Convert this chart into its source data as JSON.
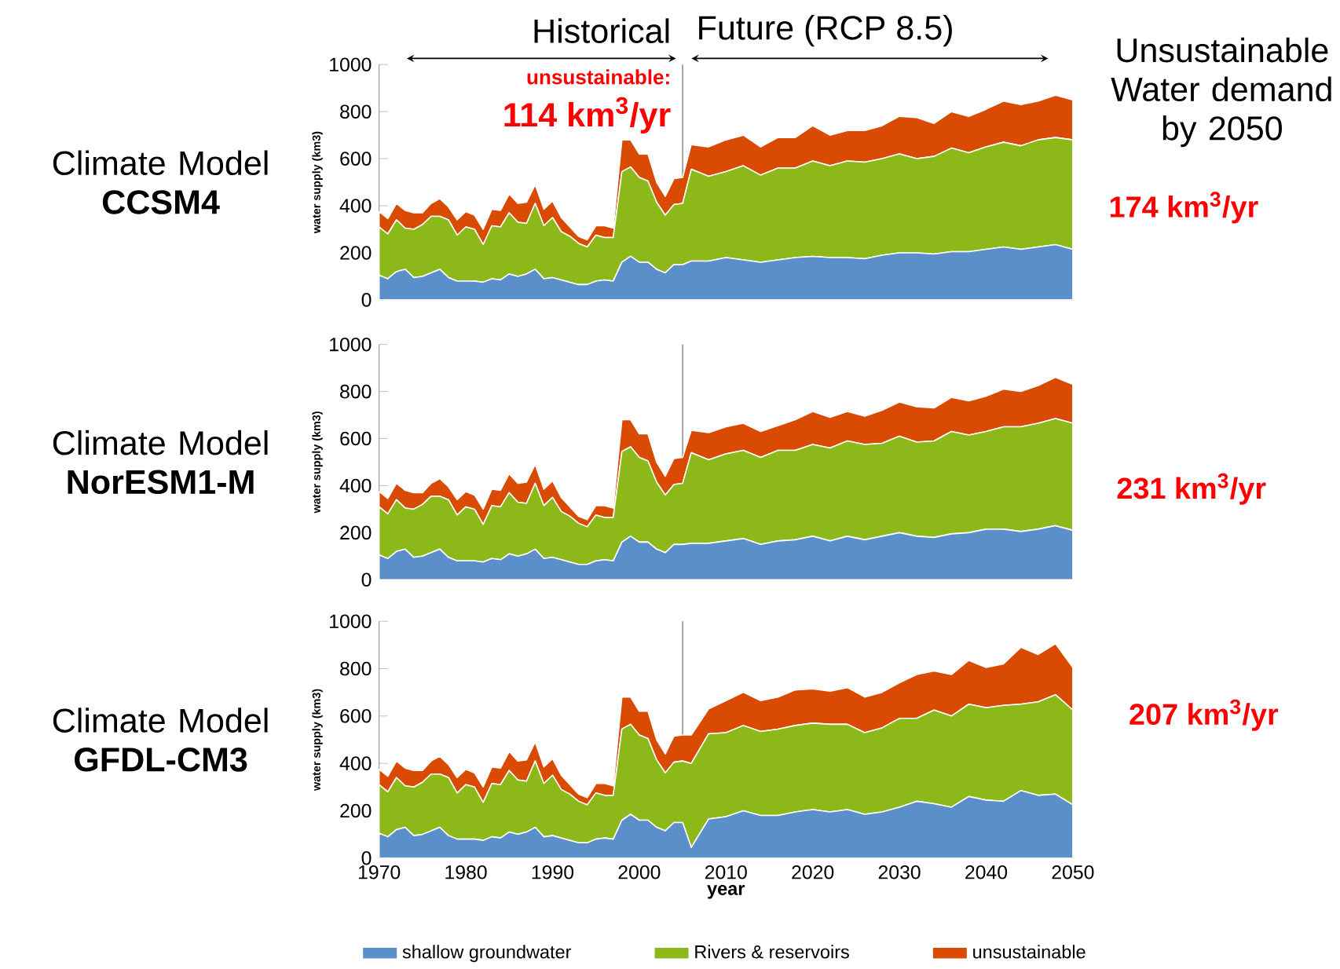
{
  "chart_data": [
    {
      "type": "area",
      "stacked": true,
      "title": "Climate Model **CCSM4**",
      "ylabel": "water supply (km3)",
      "annotations": [
        "Historical",
        "Future (RCP 8.5)",
        "unsustainable:",
        "114 km$^{3}$/yr",
        "Unsustainable Water demand by 2050",
        "174  km$^{3}$/yr"
      ],
      "x": [
        1970,
        1971,
        1972,
        1973,
        1974,
        1975,
        1976,
        1977,
        1978,
        1979,
        1980,
        1981,
        1982,
        1983,
        1984,
        1985,
        1986,
        1987,
        1988,
        1989,
        1990,
        1991,
        1992,
        1993,
        1994,
        1995,
        1996,
        1997,
        1998,
        1999,
        2000,
        2001,
        2002,
        2003,
        2004,
        2005,
        2006,
        2008,
        2010,
        2012,
        2014,
        2016,
        2018,
        2020,
        2022,
        2024,
        2026,
        2028,
        2030,
        2032,
        2034,
        2036,
        2038,
        2040,
        2042,
        2044,
        2046,
        2048,
        2050
      ],
      "series": [
        {
          "color": "#5b8fc9",
          "values": [
            105,
            90,
            120,
            130,
            95,
            100,
            115,
            130,
            95,
            80,
            80,
            80,
            75,
            90,
            85,
            110,
            100,
            110,
            130,
            90,
            95,
            85,
            75,
            65,
            65,
            80,
            85,
            80,
            160,
            185,
            160,
            160,
            130,
            115,
            150,
            150,
            165,
            165,
            180,
            170,
            160,
            170,
            180,
            185,
            180,
            180,
            175,
            190,
            200,
            200,
            195,
            205,
            205,
            215,
            225,
            215,
            225,
            235,
            215
          ]
        },
        {
          "color": "#8db819",
          "values": [
            205,
            190,
            220,
            175,
            205,
            220,
            240,
            225,
            245,
            195,
            230,
            220,
            160,
            225,
            225,
            260,
            230,
            215,
            280,
            225,
            255,
            205,
            195,
            175,
            160,
            195,
            180,
            185,
            385,
            380,
            360,
            345,
            285,
            245,
            255,
            260,
            390,
            360,
            365,
            400,
            370,
            390,
            380,
            405,
            390,
            410,
            410,
            410,
            420,
            400,
            415,
            440,
            420,
            435,
            445,
            440,
            455,
            455,
            465
          ]
        },
        {
          "color": "#d94a02",
          "values": [
            65,
            65,
            70,
            75,
            70,
            50,
            55,
            75,
            55,
            65,
            65,
            60,
            65,
            70,
            70,
            80,
            80,
            90,
            80,
            70,
            70,
            60,
            40,
            30,
            30,
            40,
            50,
            40,
            135,
            115,
            100,
            115,
            85,
            80,
            110,
            110,
            105,
            125,
            135,
            130,
            120,
            130,
            130,
            150,
            130,
            130,
            135,
            140,
            160,
            175,
            140,
            155,
            155,
            160,
            175,
            175,
            165,
            180,
            170
          ]
        }
      ],
      "xlim": [
        1970,
        2050
      ],
      "ylim": [
        0,
        1000
      ],
      "yticks": [
        0,
        200,
        400,
        600,
        800,
        1000
      ],
      "tick_labels": "y",
      "ref_lines": [
        {
          "axis": "x",
          "value": 2005,
          "color": "#8c8c8c"
        }
      ]
    },
    {
      "type": "area",
      "stacked": true,
      "title": "Climate Model **NorESM1-M**",
      "ylabel": "water supply (km3)",
      "annotations": [
        "231 km$^{3}$/yr"
      ],
      "x": [
        1970,
        1971,
        1972,
        1973,
        1974,
        1975,
        1976,
        1977,
        1978,
        1979,
        1980,
        1981,
        1982,
        1983,
        1984,
        1985,
        1986,
        1987,
        1988,
        1989,
        1990,
        1991,
        1992,
        1993,
        1994,
        1995,
        1996,
        1997,
        1998,
        1999,
        2000,
        2001,
        2002,
        2003,
        2004,
        2005,
        2006,
        2008,
        2010,
        2012,
        2014,
        2016,
        2018,
        2020,
        2022,
        2024,
        2026,
        2028,
        2030,
        2032,
        2034,
        2036,
        2038,
        2040,
        2042,
        2044,
        2046,
        2048,
        2050
      ],
      "series": [
        {
          "color": "#5b8fc9",
          "values": [
            105,
            90,
            120,
            130,
            95,
            100,
            115,
            130,
            95,
            80,
            80,
            80,
            75,
            90,
            85,
            110,
            100,
            110,
            130,
            90,
            95,
            85,
            75,
            65,
            65,
            80,
            85,
            80,
            160,
            185,
            160,
            160,
            130,
            115,
            150,
            150,
            155,
            155,
            165,
            175,
            150,
            165,
            170,
            185,
            165,
            185,
            170,
            185,
            200,
            185,
            180,
            195,
            200,
            215,
            215,
            205,
            215,
            230,
            210
          ]
        },
        {
          "color": "#8db819",
          "values": [
            205,
            190,
            220,
            175,
            205,
            220,
            240,
            225,
            245,
            195,
            230,
            220,
            160,
            225,
            225,
            260,
            230,
            215,
            280,
            225,
            255,
            205,
            195,
            175,
            160,
            195,
            180,
            185,
            385,
            380,
            360,
            345,
            285,
            245,
            255,
            260,
            385,
            355,
            370,
            375,
            370,
            385,
            380,
            390,
            395,
            405,
            405,
            395,
            410,
            400,
            410,
            435,
            415,
            415,
            435,
            445,
            450,
            455,
            455
          ]
        },
        {
          "color": "#d94a02",
          "values": [
            65,
            65,
            70,
            75,
            70,
            50,
            55,
            75,
            55,
            65,
            65,
            60,
            65,
            70,
            70,
            80,
            80,
            90,
            80,
            70,
            70,
            60,
            40,
            30,
            30,
            40,
            50,
            40,
            135,
            115,
            100,
            115,
            85,
            80,
            110,
            110,
            95,
            115,
            115,
            115,
            110,
            105,
            130,
            140,
            130,
            125,
            120,
            140,
            145,
            150,
            140,
            145,
            145,
            150,
            160,
            150,
            160,
            175,
            165
          ]
        }
      ],
      "xlim": [
        1970,
        2050
      ],
      "ylim": [
        0,
        1000
      ],
      "yticks": [
        0,
        200,
        400,
        600,
        800,
        1000
      ],
      "tick_labels": "y",
      "ref_lines": [
        {
          "axis": "x",
          "value": 2005,
          "color": "#8c8c8c"
        }
      ]
    },
    {
      "type": "area",
      "stacked": true,
      "title": "Climate Model **GFDL-CM3**",
      "ylabel": "water supply (km3)",
      "xlabel": "year",
      "annotations": [
        "207 km$^{3}$/yr"
      ],
      "x": [
        1970,
        1971,
        1972,
        1973,
        1974,
        1975,
        1976,
        1977,
        1978,
        1979,
        1980,
        1981,
        1982,
        1983,
        1984,
        1985,
        1986,
        1987,
        1988,
        1989,
        1990,
        1991,
        1992,
        1993,
        1994,
        1995,
        1996,
        1997,
        1998,
        1999,
        2000,
        2001,
        2002,
        2003,
        2004,
        2005,
        2006,
        2008,
        2010,
        2012,
        2014,
        2016,
        2018,
        2020,
        2022,
        2024,
        2026,
        2028,
        2030,
        2032,
        2034,
        2036,
        2038,
        2040,
        2042,
        2044,
        2046,
        2048,
        2050
      ],
      "series": [
        {
          "name": "shallow groundwater",
          "color": "#5b8fc9",
          "values": [
            105,
            90,
            120,
            130,
            95,
            100,
            115,
            130,
            95,
            80,
            80,
            80,
            75,
            90,
            85,
            110,
            100,
            110,
            130,
            90,
            95,
            85,
            75,
            65,
            65,
            80,
            85,
            80,
            160,
            185,
            160,
            160,
            130,
            115,
            150,
            150,
            45,
            165,
            175,
            200,
            180,
            180,
            195,
            205,
            195,
            205,
            185,
            195,
            215,
            240,
            230,
            215,
            260,
            245,
            240,
            285,
            265,
            270,
            225
          ]
        },
        {
          "name": "Rivers & reservoirs",
          "color": "#8db819",
          "values": [
            205,
            190,
            220,
            175,
            205,
            220,
            240,
            225,
            245,
            195,
            230,
            220,
            160,
            225,
            225,
            260,
            230,
            215,
            280,
            225,
            255,
            205,
            195,
            175,
            160,
            195,
            180,
            185,
            385,
            380,
            360,
            345,
            285,
            245,
            255,
            260,
            355,
            360,
            355,
            360,
            355,
            365,
            365,
            365,
            370,
            360,
            345,
            355,
            375,
            350,
            395,
            385,
            390,
            390,
            405,
            365,
            395,
            420,
            400
          ]
        },
        {
          "name": "unsustainable",
          "color": "#d94a02",
          "values": [
            65,
            65,
            70,
            75,
            70,
            50,
            55,
            75,
            55,
            65,
            65,
            60,
            65,
            70,
            70,
            80,
            80,
            90,
            80,
            70,
            70,
            60,
            40,
            30,
            30,
            40,
            50,
            40,
            135,
            115,
            100,
            115,
            85,
            80,
            110,
            110,
            120,
            105,
            135,
            140,
            130,
            135,
            150,
            145,
            140,
            155,
            150,
            150,
            150,
            185,
            165,
            175,
            185,
            170,
            175,
            240,
            200,
            215,
            180
          ]
        }
      ],
      "xlim": [
        1970,
        2050
      ],
      "ylim": [
        0,
        1000
      ],
      "xticks": [
        1970,
        1980,
        1990,
        2000,
        2010,
        2020,
        2030,
        2040,
        2050
      ],
      "yticks": [
        0,
        200,
        400,
        600,
        800,
        1000
      ],
      "legend": "bottom",
      "ref_lines": [
        {
          "axis": "x",
          "value": 2005,
          "color": "#8c8c8c"
        }
      ]
    }
  ]
}
